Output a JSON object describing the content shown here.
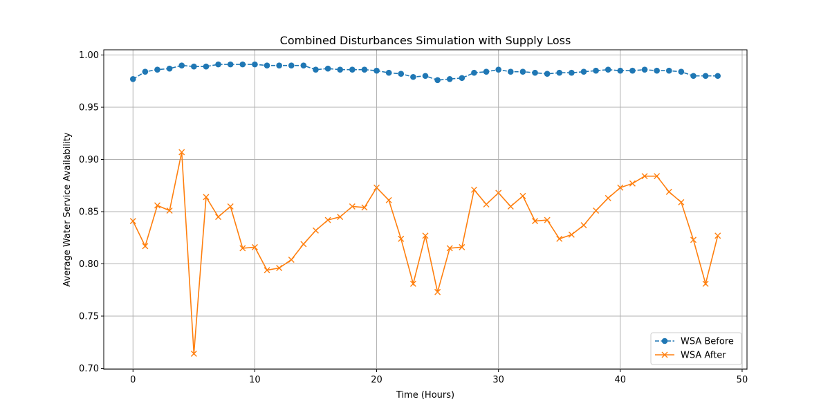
{
  "chart_data": {
    "type": "line",
    "title": "Combined Disturbances Simulation with Supply Loss",
    "xlabel": "Time (Hours)",
    "ylabel": "Average Water Service Availability",
    "xlim": [
      -2.4,
      50.4
    ],
    "ylim": [
      0.699,
      1.005
    ],
    "xticks": [
      0,
      10,
      20,
      30,
      40,
      50
    ],
    "yticks": [
      0.7,
      0.75,
      0.8,
      0.85,
      0.9,
      0.95,
      1.0
    ],
    "xtick_labels": [
      "0",
      "10",
      "20",
      "30",
      "40",
      "50"
    ],
    "ytick_labels": [
      "0.70",
      "0.75",
      "0.80",
      "0.85",
      "0.90",
      "0.95",
      "1.00"
    ],
    "grid": true,
    "legend_position": "bottom-right",
    "x": [
      0,
      1,
      2,
      3,
      4,
      5,
      6,
      7,
      8,
      9,
      10,
      11,
      12,
      13,
      14,
      15,
      16,
      17,
      18,
      19,
      20,
      21,
      22,
      23,
      24,
      25,
      26,
      27,
      28,
      29,
      30,
      31,
      32,
      33,
      34,
      35,
      36,
      37,
      38,
      39,
      40,
      41,
      42,
      43,
      44,
      45,
      46,
      47,
      48
    ],
    "series": [
      {
        "name": "WSA Before",
        "color": "#1f77b4",
        "line_style": "dashed",
        "marker": "circle",
        "values": [
          0.977,
          0.984,
          0.986,
          0.987,
          0.99,
          0.989,
          0.989,
          0.991,
          0.991,
          0.991,
          0.991,
          0.99,
          0.99,
          0.99,
          0.99,
          0.986,
          0.987,
          0.986,
          0.986,
          0.986,
          0.985,
          0.983,
          0.982,
          0.979,
          0.98,
          0.976,
          0.977,
          0.978,
          0.983,
          0.984,
          0.986,
          0.984,
          0.984,
          0.983,
          0.982,
          0.983,
          0.983,
          0.984,
          0.985,
          0.986,
          0.985,
          0.985,
          0.986,
          0.985,
          0.985,
          0.984,
          0.98,
          0.98,
          0.98
        ]
      },
      {
        "name": "WSA After",
        "color": "#ff7f0e",
        "line_style": "solid",
        "marker": "x",
        "values": [
          0.841,
          0.817,
          0.856,
          0.851,
          0.907,
          0.714,
          0.864,
          0.845,
          0.855,
          0.815,
          0.816,
          0.794,
          0.796,
          0.804,
          0.819,
          0.832,
          0.842,
          0.845,
          0.855,
          0.854,
          0.873,
          0.861,
          0.824,
          0.781,
          0.827,
          0.773,
          0.815,
          0.816,
          0.871,
          0.857,
          0.868,
          0.855,
          0.865,
          0.841,
          0.842,
          0.824,
          0.828,
          0.837,
          0.851,
          0.863,
          0.873,
          0.877,
          0.884,
          0.884,
          0.869,
          0.859,
          0.823,
          0.781,
          0.827
        ]
      }
    ]
  }
}
